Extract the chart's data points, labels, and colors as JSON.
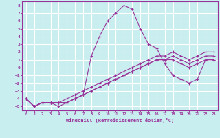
{
  "xlabel": "Windchill (Refroidissement éolien,°C)",
  "bg_color": "#c8eef0",
  "line_color": "#993399",
  "grid_color": "#ffffff",
  "xlim": [
    -0.5,
    23.5
  ],
  "ylim": [
    -5.5,
    8.5
  ],
  "xticks": [
    0,
    1,
    2,
    3,
    4,
    5,
    6,
    7,
    8,
    9,
    10,
    11,
    12,
    13,
    14,
    15,
    16,
    17,
    18,
    19,
    20,
    21,
    22,
    23
  ],
  "yticks": [
    -5,
    -4,
    -3,
    -2,
    -1,
    0,
    1,
    2,
    3,
    4,
    5,
    6,
    7,
    8
  ],
  "line1_x": [
    0,
    1,
    2,
    3,
    4,
    5,
    6,
    7,
    8,
    9,
    10,
    11,
    12,
    13,
    14,
    15,
    16,
    17,
    18,
    19,
    20,
    21,
    22,
    23
  ],
  "line1_y": [
    -4,
    -5,
    -4.5,
    -4.5,
    -5,
    -4.5,
    -4,
    -3.5,
    1.5,
    4,
    6,
    7,
    8,
    7.5,
    5,
    3,
    2.5,
    0.5,
    -1,
    -1.5,
    -2,
    -1.5,
    1,
    1
  ],
  "line2_x": [
    0,
    1,
    2,
    3,
    4,
    5,
    6,
    7,
    8,
    9,
    10,
    11,
    12,
    13,
    14,
    15,
    16,
    17,
    18,
    19,
    20,
    21,
    22,
    23
  ],
  "line2_y": [
    -4,
    -5,
    -4.5,
    -4.5,
    -4.5,
    -4.5,
    -4,
    -3.5,
    -3.0,
    -2.5,
    -2.0,
    -1.5,
    -1.0,
    -0.5,
    0.0,
    0.5,
    1.0,
    1.0,
    1.0,
    0.5,
    0.0,
    0.5,
    1.0,
    1.0
  ],
  "line3_x": [
    0,
    1,
    2,
    3,
    4,
    5,
    6,
    7,
    8,
    9,
    10,
    11,
    12,
    13,
    14,
    15,
    16,
    17,
    18,
    19,
    20,
    21,
    22,
    23
  ],
  "line3_y": [
    -4,
    -5,
    -4.5,
    -4.5,
    -4.5,
    -4.5,
    -4,
    -3.5,
    -3.0,
    -2.5,
    -2.0,
    -1.5,
    -1.0,
    -0.5,
    0.0,
    0.5,
    1.0,
    1.0,
    1.5,
    1.0,
    0.5,
    1.0,
    1.5,
    1.5
  ],
  "line4_x": [
    0,
    1,
    2,
    3,
    4,
    5,
    6,
    7,
    8,
    9,
    10,
    11,
    12,
    13,
    14,
    15,
    16,
    17,
    18,
    19,
    20,
    21,
    22,
    23
  ],
  "line4_y": [
    -4,
    -5,
    -4.5,
    -4.5,
    -4.5,
    -4.0,
    -3.5,
    -3.0,
    -2.5,
    -2.0,
    -1.5,
    -1.0,
    -0.5,
    0.0,
    0.5,
    1.0,
    1.5,
    1.5,
    2.0,
    1.5,
    1.0,
    1.5,
    2.0,
    2.0
  ]
}
